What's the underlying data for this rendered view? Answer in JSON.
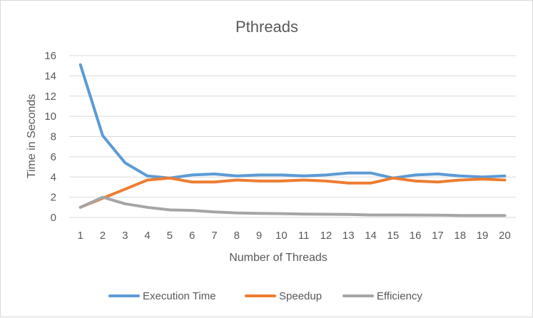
{
  "chart_data": {
    "type": "line",
    "title": "Pthreads",
    "xlabel": "Number of Threads",
    "ylabel": "Time in Seconds",
    "ylim": [
      0,
      16
    ],
    "yticks": [
      0,
      2,
      4,
      6,
      8,
      10,
      12,
      14,
      16
    ],
    "grid": true,
    "legend": "bottom",
    "x": [
      1,
      2,
      3,
      4,
      5,
      6,
      7,
      8,
      9,
      10,
      11,
      12,
      13,
      14,
      15,
      16,
      17,
      18,
      19,
      20
    ],
    "series": [
      {
        "name": "Execution Time",
        "color": "#5b9bd5",
        "values": [
          15.1,
          8.1,
          5.4,
          4.1,
          3.9,
          4.2,
          4.3,
          4.1,
          4.2,
          4.2,
          4.1,
          4.2,
          4.4,
          4.4,
          3.9,
          4.2,
          4.3,
          4.1,
          4.0,
          4.1
        ]
      },
      {
        "name": "Speedup",
        "color": "#ed7d31",
        "values": [
          1.0,
          1.9,
          2.8,
          3.7,
          3.9,
          3.5,
          3.5,
          3.7,
          3.6,
          3.6,
          3.7,
          3.6,
          3.4,
          3.4,
          3.9,
          3.6,
          3.5,
          3.7,
          3.8,
          3.7
        ]
      },
      {
        "name": "Efficiency",
        "color": "#a5a5a5",
        "values": [
          1.0,
          2.0,
          1.35,
          1.0,
          0.75,
          0.7,
          0.55,
          0.45,
          0.4,
          0.38,
          0.33,
          0.32,
          0.3,
          0.25,
          0.25,
          0.24,
          0.23,
          0.2,
          0.2,
          0.2
        ]
      }
    ]
  }
}
